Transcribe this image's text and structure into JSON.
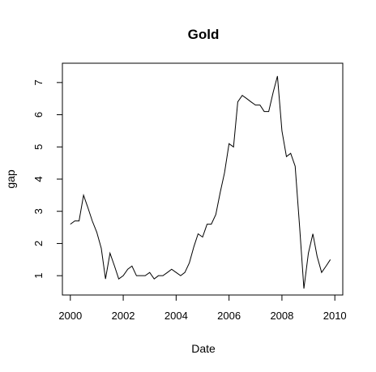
{
  "chart_data": {
    "type": "line",
    "title": "Gold",
    "xlabel": "Date",
    "ylabel": "gap",
    "xlim": [
      1999.7,
      2010.3
    ],
    "ylim": [
      0.4,
      7.6
    ],
    "x_ticks": [
      2000,
      2002,
      2004,
      2006,
      2008,
      2010
    ],
    "y_ticks": [
      1,
      2,
      3,
      4,
      5,
      6,
      7
    ],
    "grid": false,
    "legend": "none",
    "line_color": "#000000",
    "series": [
      {
        "x": [
          2000.0,
          2000.17,
          2000.33,
          2000.5,
          2000.67,
          2000.83,
          2001.0,
          2001.17,
          2001.33,
          2001.5,
          2001.67,
          2001.83,
          2002.0,
          2002.17,
          2002.33,
          2002.5,
          2002.67,
          2002.83,
          2003.0,
          2003.17,
          2003.33,
          2003.5,
          2003.67,
          2003.83,
          2004.0,
          2004.17,
          2004.33,
          2004.5,
          2004.67,
          2004.83,
          2005.0,
          2005.17,
          2005.33,
          2005.5,
          2005.67,
          2005.83,
          2006.0,
          2006.17,
          2006.33,
          2006.5,
          2006.67,
          2006.83,
          2007.0,
          2007.17,
          2007.33,
          2007.5,
          2007.67,
          2007.83,
          2008.0,
          2008.17,
          2008.33,
          2008.5,
          2008.67,
          2008.83,
          2009.0,
          2009.17,
          2009.33,
          2009.5,
          2009.67,
          2009.83
        ],
        "y": [
          2.6,
          2.7,
          2.7,
          3.5,
          3.1,
          2.7,
          2.35,
          1.85,
          0.9,
          1.7,
          1.3,
          0.9,
          1.0,
          1.2,
          1.3,
          1.0,
          1.0,
          1.0,
          1.1,
          0.9,
          1.0,
          1.0,
          1.1,
          1.2,
          1.1,
          1.0,
          1.1,
          1.4,
          1.9,
          2.3,
          2.2,
          2.6,
          2.6,
          2.9,
          3.6,
          4.2,
          5.1,
          5.0,
          6.4,
          6.6,
          6.5,
          6.4,
          6.3,
          6.3,
          6.1,
          6.1,
          6.7,
          7.2,
          5.5,
          4.7,
          4.8,
          4.4,
          2.5,
          0.6,
          1.7,
          2.3,
          1.6,
          1.1,
          1.3,
          1.5
        ]
      }
    ]
  }
}
